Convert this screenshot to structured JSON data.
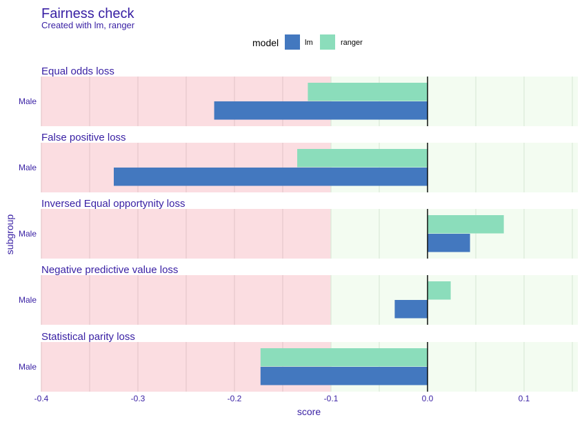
{
  "chart_data": {
    "type": "bar",
    "title": "Fairness check",
    "subtitle": "Created with  lm, ranger",
    "xlabel": "score",
    "ylabel": "subgroup",
    "xlim": [
      -0.4,
      0.15
    ],
    "x_ticks": [
      "-0.4",
      "-0.3",
      "-0.2",
      "-0.1",
      "0.0",
      "0.1"
    ],
    "x_tick_values": [
      -0.4,
      -0.3,
      -0.2,
      -0.1,
      0.0,
      0.1
    ],
    "fairness_threshold": [
      -0.1,
      0.1
    ],
    "legend": {
      "title": "model",
      "placement": "top",
      "entries": [
        {
          "name": "lm",
          "color": "#4378bf"
        },
        {
          "name": "ranger",
          "color": "#8bddbb"
        }
      ]
    },
    "zone_colors": {
      "unfair": "#fbdde1",
      "fair": "#f3fcf1"
    },
    "panels": [
      {
        "title": "Equal odds loss",
        "subgroup": "Male",
        "values": {
          "lm": -0.221,
          "ranger": -0.124
        }
      },
      {
        "title": "False positive loss",
        "subgroup": "Male",
        "values": {
          "lm": -0.325,
          "ranger": -0.135
        }
      },
      {
        "title": "Inversed Equal opportynity loss",
        "subgroup": "Male",
        "values": {
          "lm": 0.044,
          "ranger": 0.079
        }
      },
      {
        "title": "Negative predictive value loss",
        "subgroup": "Male",
        "values": {
          "lm": -0.034,
          "ranger": 0.024
        }
      },
      {
        "title": "Statistical parity loss",
        "subgroup": "Male",
        "values": {
          "lm": -0.173,
          "ranger": -0.173
        }
      }
    ]
  }
}
